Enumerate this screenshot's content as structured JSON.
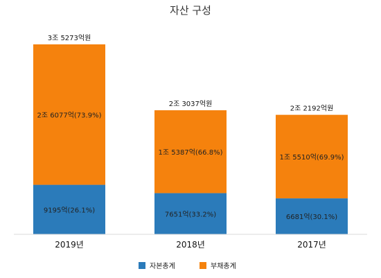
{
  "chart_data": {
    "type": "bar",
    "stacked": true,
    "title": "자산 구성",
    "categories": [
      "2019년",
      "2018년",
      "2017년"
    ],
    "totals": [
      35273,
      23037,
      22192
    ],
    "total_labels": [
      "3조 5273억원",
      "2조 3037억원",
      "2조 2192억원"
    ],
    "series": [
      {
        "name": "자본총계",
        "color": "#2B7BBA",
        "values": [
          9195,
          7651,
          6681
        ],
        "labels": [
          "9195억(26.1%)",
          "7651억(33.2%)",
          "6681억(30.1%)"
        ]
      },
      {
        "name": "부채총계",
        "color": "#F5820D",
        "values": [
          26077,
          15387,
          15510
        ],
        "labels": [
          "2조 6077억(73.9%)",
          "1조 5387억(66.8%)",
          "1조 5510억(69.9%)"
        ]
      }
    ],
    "value_unit": "억원",
    "ylim": [
      0,
      35273
    ],
    "grid": false,
    "legend_position": "bottom"
  }
}
